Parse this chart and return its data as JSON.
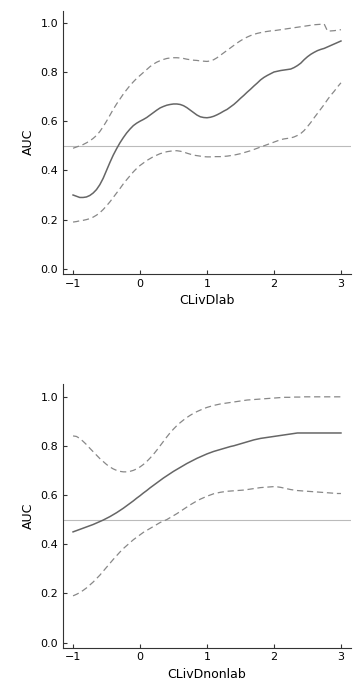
{
  "panel1": {
    "xlabel": "CLivDlab",
    "ylabel": "AUC",
    "xlim": [
      -1.15,
      3.15
    ],
    "ylim": [
      -0.02,
      1.05
    ],
    "xticks": [
      -1,
      0,
      1,
      2,
      3
    ],
    "yticks": [
      0.0,
      0.2,
      0.4,
      0.6,
      0.8,
      1.0
    ],
    "hline": 0.5,
    "main_x": [
      -1.0,
      -0.95,
      -0.9,
      -0.85,
      -0.8,
      -0.75,
      -0.7,
      -0.65,
      -0.6,
      -0.55,
      -0.5,
      -0.45,
      -0.4,
      -0.35,
      -0.3,
      -0.25,
      -0.2,
      -0.15,
      -0.1,
      -0.05,
      0.0,
      0.05,
      0.1,
      0.15,
      0.2,
      0.25,
      0.3,
      0.35,
      0.4,
      0.45,
      0.5,
      0.55,
      0.6,
      0.65,
      0.7,
      0.75,
      0.8,
      0.85,
      0.9,
      0.95,
      1.0,
      1.05,
      1.1,
      1.15,
      1.2,
      1.25,
      1.3,
      1.35,
      1.4,
      1.45,
      1.5,
      1.55,
      1.6,
      1.65,
      1.7,
      1.75,
      1.8,
      1.85,
      1.9,
      1.95,
      2.0,
      2.05,
      2.1,
      2.15,
      2.2,
      2.25,
      2.3,
      2.35,
      2.4,
      2.45,
      2.5,
      2.55,
      2.6,
      2.65,
      2.7,
      2.75,
      2.8,
      2.85,
      2.9,
      2.95,
      3.0
    ],
    "main_y": [
      0.3,
      0.295,
      0.29,
      0.29,
      0.292,
      0.298,
      0.308,
      0.322,
      0.342,
      0.368,
      0.4,
      0.432,
      0.462,
      0.488,
      0.512,
      0.533,
      0.552,
      0.568,
      0.582,
      0.592,
      0.6,
      0.607,
      0.615,
      0.625,
      0.635,
      0.645,
      0.654,
      0.66,
      0.665,
      0.668,
      0.67,
      0.67,
      0.668,
      0.663,
      0.655,
      0.645,
      0.635,
      0.625,
      0.618,
      0.615,
      0.614,
      0.616,
      0.62,
      0.626,
      0.633,
      0.641,
      0.648,
      0.658,
      0.668,
      0.68,
      0.693,
      0.705,
      0.718,
      0.73,
      0.743,
      0.755,
      0.768,
      0.778,
      0.786,
      0.793,
      0.8,
      0.803,
      0.806,
      0.808,
      0.81,
      0.812,
      0.818,
      0.826,
      0.836,
      0.85,
      0.862,
      0.872,
      0.88,
      0.887,
      0.892,
      0.896,
      0.902,
      0.908,
      0.914,
      0.92,
      0.926
    ],
    "upper_y": [
      0.49,
      0.495,
      0.5,
      0.505,
      0.512,
      0.52,
      0.53,
      0.542,
      0.558,
      0.578,
      0.6,
      0.624,
      0.648,
      0.67,
      0.69,
      0.71,
      0.728,
      0.745,
      0.76,
      0.774,
      0.786,
      0.798,
      0.81,
      0.822,
      0.832,
      0.84,
      0.846,
      0.851,
      0.855,
      0.857,
      0.858,
      0.858,
      0.857,
      0.855,
      0.852,
      0.85,
      0.848,
      0.847,
      0.845,
      0.844,
      0.843,
      0.845,
      0.85,
      0.858,
      0.868,
      0.878,
      0.888,
      0.898,
      0.908,
      0.918,
      0.927,
      0.935,
      0.942,
      0.948,
      0.953,
      0.957,
      0.96,
      0.963,
      0.965,
      0.967,
      0.968,
      0.97,
      0.972,
      0.974,
      0.976,
      0.978,
      0.98,
      0.982,
      0.984,
      0.986,
      0.988,
      0.99,
      0.992,
      0.993,
      0.994,
      0.995,
      0.966,
      0.967,
      0.968,
      0.97,
      0.972
    ],
    "lower_y": [
      0.19,
      0.192,
      0.195,
      0.197,
      0.2,
      0.204,
      0.21,
      0.218,
      0.228,
      0.241,
      0.256,
      0.272,
      0.29,
      0.308,
      0.326,
      0.345,
      0.362,
      0.378,
      0.394,
      0.408,
      0.42,
      0.43,
      0.44,
      0.448,
      0.456,
      0.462,
      0.468,
      0.472,
      0.476,
      0.478,
      0.48,
      0.48,
      0.478,
      0.475,
      0.47,
      0.466,
      0.462,
      0.46,
      0.458,
      0.456,
      0.455,
      0.455,
      0.456,
      0.456,
      0.456,
      0.457,
      0.458,
      0.46,
      0.462,
      0.465,
      0.468,
      0.472,
      0.476,
      0.48,
      0.485,
      0.49,
      0.495,
      0.5,
      0.505,
      0.51,
      0.515,
      0.52,
      0.525,
      0.528,
      0.53,
      0.532,
      0.536,
      0.542,
      0.55,
      0.562,
      0.578,
      0.595,
      0.614,
      0.632,
      0.65,
      0.668,
      0.688,
      0.706,
      0.722,
      0.74,
      0.756
    ]
  },
  "panel2": {
    "xlabel": "CLivDnonlab",
    "ylabel": "AUC",
    "xlim": [
      -1.15,
      3.15
    ],
    "ylim": [
      -0.02,
      1.05
    ],
    "xticks": [
      -1,
      0,
      1,
      2,
      3
    ],
    "yticks": [
      0.0,
      0.2,
      0.4,
      0.6,
      0.8,
      1.0
    ],
    "hline": 0.5,
    "main_x": [
      -1.0,
      -0.95,
      -0.9,
      -0.85,
      -0.8,
      -0.75,
      -0.7,
      -0.65,
      -0.6,
      -0.55,
      -0.5,
      -0.45,
      -0.4,
      -0.35,
      -0.3,
      -0.25,
      -0.2,
      -0.15,
      -0.1,
      -0.05,
      0.0,
      0.05,
      0.1,
      0.15,
      0.2,
      0.25,
      0.3,
      0.35,
      0.4,
      0.45,
      0.5,
      0.55,
      0.6,
      0.65,
      0.7,
      0.75,
      0.8,
      0.85,
      0.9,
      0.95,
      1.0,
      1.05,
      1.1,
      1.15,
      1.2,
      1.25,
      1.3,
      1.35,
      1.4,
      1.45,
      1.5,
      1.55,
      1.6,
      1.65,
      1.7,
      1.75,
      1.8,
      1.85,
      1.9,
      1.95,
      2.0,
      2.05,
      2.1,
      2.15,
      2.2,
      2.25,
      2.3,
      2.35,
      2.4,
      2.45,
      2.5,
      2.55,
      2.6,
      2.65,
      2.7,
      2.75,
      2.8,
      2.85,
      2.9,
      2.95,
      3.0
    ],
    "main_y": [
      0.45,
      0.455,
      0.46,
      0.465,
      0.47,
      0.475,
      0.48,
      0.486,
      0.492,
      0.498,
      0.505,
      0.512,
      0.52,
      0.528,
      0.537,
      0.546,
      0.556,
      0.566,
      0.576,
      0.587,
      0.597,
      0.608,
      0.618,
      0.629,
      0.639,
      0.649,
      0.659,
      0.669,
      0.678,
      0.687,
      0.696,
      0.704,
      0.712,
      0.72,
      0.728,
      0.735,
      0.742,
      0.749,
      0.755,
      0.761,
      0.767,
      0.772,
      0.777,
      0.781,
      0.785,
      0.789,
      0.793,
      0.797,
      0.8,
      0.804,
      0.808,
      0.812,
      0.816,
      0.82,
      0.824,
      0.827,
      0.83,
      0.832,
      0.834,
      0.836,
      0.838,
      0.84,
      0.842,
      0.844,
      0.846,
      0.848,
      0.85,
      0.852,
      0.852,
      0.852,
      0.852,
      0.852,
      0.852,
      0.852,
      0.852,
      0.852,
      0.852,
      0.852,
      0.852,
      0.852,
      0.852
    ],
    "upper_y": [
      0.84,
      0.838,
      0.83,
      0.818,
      0.805,
      0.79,
      0.776,
      0.762,
      0.748,
      0.736,
      0.724,
      0.714,
      0.706,
      0.7,
      0.696,
      0.694,
      0.694,
      0.696,
      0.7,
      0.706,
      0.714,
      0.724,
      0.736,
      0.75,
      0.765,
      0.782,
      0.8,
      0.818,
      0.836,
      0.853,
      0.868,
      0.882,
      0.894,
      0.905,
      0.915,
      0.924,
      0.932,
      0.939,
      0.945,
      0.951,
      0.956,
      0.96,
      0.964,
      0.967,
      0.97,
      0.972,
      0.974,
      0.976,
      0.978,
      0.98,
      0.982,
      0.984,
      0.986,
      0.987,
      0.988,
      0.989,
      0.99,
      0.991,
      0.992,
      0.993,
      0.994,
      0.995,
      0.996,
      0.997,
      0.997,
      0.997,
      0.998,
      0.998,
      0.998,
      0.999,
      0.999,
      0.999,
      0.999,
      0.999,
      0.999,
      0.999,
      0.999,
      0.999,
      0.999,
      0.999,
      0.999
    ],
    "lower_y": [
      0.19,
      0.196,
      0.203,
      0.212,
      0.222,
      0.234,
      0.246,
      0.26,
      0.274,
      0.29,
      0.306,
      0.322,
      0.338,
      0.353,
      0.368,
      0.382,
      0.394,
      0.406,
      0.418,
      0.428,
      0.438,
      0.448,
      0.456,
      0.464,
      0.472,
      0.48,
      0.488,
      0.494,
      0.5,
      0.508,
      0.516,
      0.524,
      0.533,
      0.542,
      0.551,
      0.56,
      0.568,
      0.576,
      0.583,
      0.589,
      0.595,
      0.6,
      0.605,
      0.608,
      0.611,
      0.613,
      0.615,
      0.616,
      0.617,
      0.618,
      0.619,
      0.62,
      0.622,
      0.624,
      0.626,
      0.628,
      0.63,
      0.631,
      0.632,
      0.633,
      0.634,
      0.633,
      0.631,
      0.628,
      0.625,
      0.622,
      0.62,
      0.618,
      0.617,
      0.616,
      0.615,
      0.614,
      0.613,
      0.612,
      0.611,
      0.61,
      0.609,
      0.608,
      0.607,
      0.606,
      0.606
    ]
  },
  "line_color": "#666666",
  "dash_color": "#888888",
  "hline_color": "#bbbbbb",
  "bg_color": "#ffffff",
  "plot_bg": "#ffffff"
}
